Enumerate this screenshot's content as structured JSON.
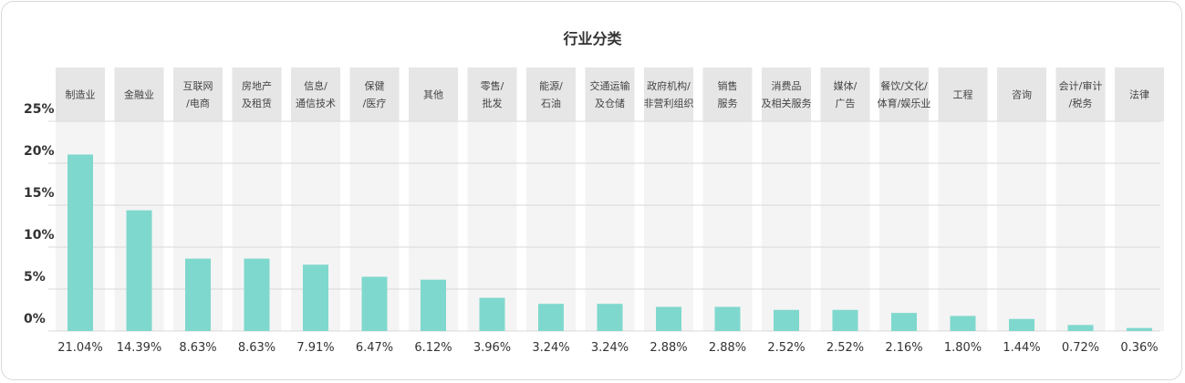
{
  "chart_data": {
    "type": "bar",
    "title": "行业分类",
    "categories": [
      [
        "制造业"
      ],
      [
        "金融业"
      ],
      [
        "互联网",
        "/电商"
      ],
      [
        "房地产",
        "及租赁"
      ],
      [
        "信息/",
        "通信技术"
      ],
      [
        "保健",
        "/医疗"
      ],
      [
        "其他"
      ],
      [
        "零售/",
        "批发"
      ],
      [
        "能源/",
        "石油"
      ],
      [
        "交通运输",
        "及仓储"
      ],
      [
        "政府机构/",
        "非营利组织"
      ],
      [
        "销售",
        "服务"
      ],
      [
        "消费品",
        "及相关服务"
      ],
      [
        "媒体/",
        "广告"
      ],
      [
        "餐饮/文化/",
        "体育/娱乐业"
      ],
      [
        "工程"
      ],
      [
        "咨询"
      ],
      [
        "会计/审计",
        "/税务"
      ],
      [
        "法律"
      ]
    ],
    "values": [
      21.04,
      14.39,
      8.63,
      8.63,
      7.91,
      6.47,
      6.12,
      3.96,
      3.24,
      3.24,
      2.88,
      2.88,
      2.52,
      2.52,
      2.16,
      1.8,
      1.44,
      0.72,
      0.36
    ],
    "value_labels": [
      "21.04%",
      "14.39%",
      "8.63%",
      "8.63%",
      "7.91%",
      "6.47%",
      "6.12%",
      "3.96%",
      "3.24%",
      "3.24%",
      "2.88%",
      "2.88%",
      "2.52%",
      "2.52%",
      "2.16%",
      "1.80%",
      "1.44%",
      "0.72%",
      "0.36%"
    ],
    "y_ticks": [
      "25%",
      "20%",
      "15%",
      "10%",
      "5%",
      "0%"
    ],
    "xlabel": "",
    "ylabel": "",
    "grid": true,
    "colors": {
      "bar": "#7fd8cd",
      "column": "#f4f4f4",
      "header": "#e6e6e6",
      "grid": "#d9d9d9"
    }
  }
}
